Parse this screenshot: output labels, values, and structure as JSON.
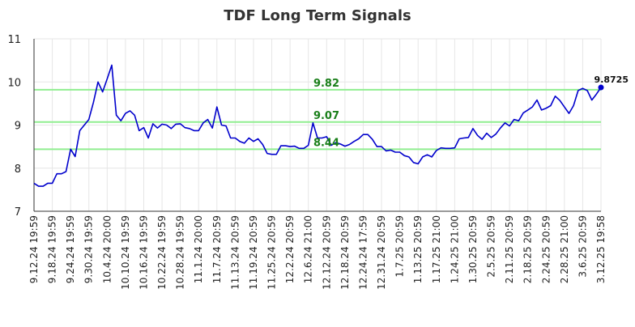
{
  "chart_data": {
    "type": "line",
    "title": "TDF Long Term Signals",
    "xlabel": "",
    "ylabel": "",
    "ylim": [
      7,
      11
    ],
    "yticks": [
      7,
      8,
      9,
      10,
      11
    ],
    "grid": true,
    "legend": "none",
    "colors": {
      "line": "#0000cc",
      "signal": "#90ee90",
      "signal_text": "#1a7f1a",
      "grid": "#e6e6e6"
    },
    "x_tick_labels": [
      "9.12.24 19:59",
      "9.18.24 19:59",
      "9.24.24 19:59",
      "9.30.24 19:59",
      "10.4.24 20:00",
      "10.10.24 19:59",
      "10.16.24 19:59",
      "10.22.24 19:59",
      "10.28.24 19:59",
      "11.1.24 20:00",
      "11.7.24 20:59",
      "11.13.24 20:59",
      "11.19.24 20:59",
      "11.25.24 20:59",
      "12.2.24 20:59",
      "12.6.24 21:00",
      "12.12.24 20:59",
      "12.18.24 20:59",
      "12.24.24 17:59",
      "12.31.24 20:59",
      "1.7.25 20:59",
      "1.13.25 20:59",
      "1.17.25 21:00",
      "1.24.25 21:00",
      "1.30.25 20:59",
      "2.5.25 20:59",
      "2.11.25 20:59",
      "2.18.25 20:59",
      "2.24.25 20:59",
      "2.28.25 21:00",
      "3.6.25 20:59",
      "3.12.25 19:58"
    ],
    "signals": [
      {
        "value": 9.82,
        "label": "9.82"
      },
      {
        "value": 9.07,
        "label": "9.07"
      },
      {
        "value": 8.44,
        "label": "8.44"
      }
    ],
    "last_value_label": "9.8725",
    "series": [
      {
        "values": [
          7.65,
          7.58,
          7.58,
          7.65,
          7.65,
          7.87,
          7.87,
          7.92,
          8.44,
          8.27,
          8.87,
          9.0,
          9.13,
          9.53,
          10.0,
          9.77,
          10.07,
          10.39,
          9.23,
          9.1,
          9.27,
          9.33,
          9.23,
          8.87,
          8.94,
          8.7,
          9.03,
          8.93,
          9.02,
          9.0,
          8.92,
          9.02,
          9.03,
          8.94,
          8.92,
          8.87,
          8.87,
          9.05,
          9.13,
          8.93,
          9.42,
          9.0,
          8.98,
          8.7,
          8.7,
          8.62,
          8.58,
          8.7,
          8.62,
          8.68,
          8.55,
          8.34,
          8.32,
          8.32,
          8.52,
          8.52,
          8.5,
          8.51,
          8.46,
          8.46,
          8.53,
          9.05,
          8.7,
          8.7,
          8.73,
          8.53,
          8.59,
          8.56,
          8.51,
          8.55,
          8.62,
          8.68,
          8.78,
          8.78,
          8.67,
          8.5,
          8.5,
          8.4,
          8.42,
          8.37,
          8.37,
          8.29,
          8.26,
          8.13,
          8.1,
          8.26,
          8.31,
          8.26,
          8.41,
          8.47,
          8.46,
          8.46,
          8.47,
          8.68,
          8.7,
          8.71,
          8.92,
          8.76,
          8.67,
          8.81,
          8.71,
          8.79,
          8.93,
          9.05,
          8.98,
          9.13,
          9.1,
          9.28,
          9.35,
          9.42,
          9.58,
          9.35,
          9.39,
          9.45,
          9.67,
          9.57,
          9.42,
          9.27,
          9.45,
          9.8,
          9.85,
          9.8,
          9.58,
          9.72,
          9.8725
        ]
      }
    ]
  }
}
